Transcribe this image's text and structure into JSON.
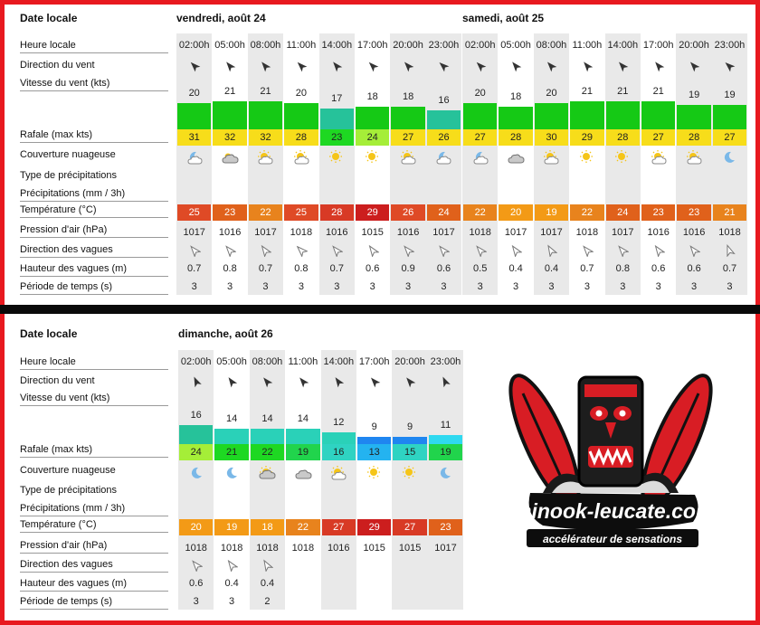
{
  "labels": {
    "date": "Date locale",
    "hour": "Heure locale",
    "wind_dir": "Direction du vent",
    "wind_speed": "Vitesse du vent  (kts)",
    "gust": "Rafale  (max kts)",
    "cloud": "Couverture nuageuse",
    "precip_type": "Type de précipitations",
    "precip": "Précipitations  (mm / 3h)",
    "temp": "Température  (°C)",
    "pressure": "Pression d'air  (hPa)",
    "wave_dir": "Direction des vagues",
    "wave_height": "Hauteur des vagues  (m)",
    "period": "Période de temps  (s)"
  },
  "hours": [
    "02:00h",
    "05:00h",
    "08:00h",
    "11:00h",
    "14:00h",
    "17:00h",
    "20:00h",
    "23:00h"
  ],
  "days": [
    {
      "title": "vendredi, août 24",
      "wind_speed": [
        20,
        21,
        21,
        20,
        17,
        18,
        18,
        16
      ],
      "gust": [
        31,
        32,
        32,
        28,
        23,
        24,
        27,
        26
      ],
      "cloud": [
        "partly-cloudy-night-icon",
        "partly-cloudy-icon",
        "sun-cloud-icon",
        "sun-cloud-icon",
        "sun-icon",
        "sun-icon",
        "sun-cloud-icon",
        "partly-cloudy-night-icon"
      ],
      "temp": [
        25,
        23,
        22,
        25,
        28,
        29,
        26,
        24
      ],
      "pressure": [
        1017,
        1016,
        1017,
        1018,
        1016,
        1015,
        1016,
        1017
      ],
      "wave_height": [
        "0.7",
        "0.8",
        "0.7",
        "0.8",
        "0.7",
        "0.6",
        "0.9",
        "0.6"
      ],
      "period": [
        3,
        3,
        3,
        3,
        3,
        3,
        3,
        3
      ]
    },
    {
      "title": "samedi, août 25",
      "wind_speed": [
        20,
        18,
        20,
        21,
        21,
        21,
        19,
        19
      ],
      "gust": [
        27,
        28,
        30,
        29,
        28,
        27,
        28,
        27
      ],
      "cloud": [
        "partly-cloudy-night-icon",
        "cloud-icon",
        "sun-cloud-icon",
        "sun-icon",
        "sun-icon",
        "sun-cloud-icon",
        "sun-cloud-icon",
        "moon-icon"
      ],
      "temp": [
        22,
        20,
        19,
        22,
        24,
        23,
        23,
        21
      ],
      "pressure": [
        1018,
        1017,
        1017,
        1018,
        1017,
        1016,
        1016,
        1018
      ],
      "wave_height": [
        "0.5",
        "0.4",
        "0.4",
        "0.7",
        "0.8",
        "0.6",
        "0.6",
        "0.7"
      ],
      "period": [
        3,
        3,
        3,
        3,
        3,
        3,
        3,
        3
      ]
    },
    {
      "title": "dimanche, août 26",
      "wind_speed": [
        16,
        14,
        14,
        14,
        12,
        9,
        9,
        11
      ],
      "gust": [
        24,
        21,
        22,
        19,
        16,
        13,
        15,
        19
      ],
      "cloud": [
        "moon-icon",
        "moon-icon",
        "cloud-sun-icon",
        "cloud-icon",
        "sun-cloud-icon",
        "sun-icon",
        "sun-icon",
        "moon-icon"
      ],
      "temp": [
        20,
        19,
        18,
        22,
        27,
        29,
        27,
        23
      ],
      "pressure": [
        1018,
        1018,
        1018,
        1018,
        1016,
        1015,
        1015,
        1017
      ],
      "wave_height": [
        "0.6",
        "0.4",
        "0.4"
      ],
      "period": [
        3,
        3,
        2
      ]
    }
  ],
  "logo": {
    "brand": "chinook-leucate.com",
    "tagline": "accélérateur de sensations"
  },
  "colors": {
    "border": "#e8191f"
  }
}
